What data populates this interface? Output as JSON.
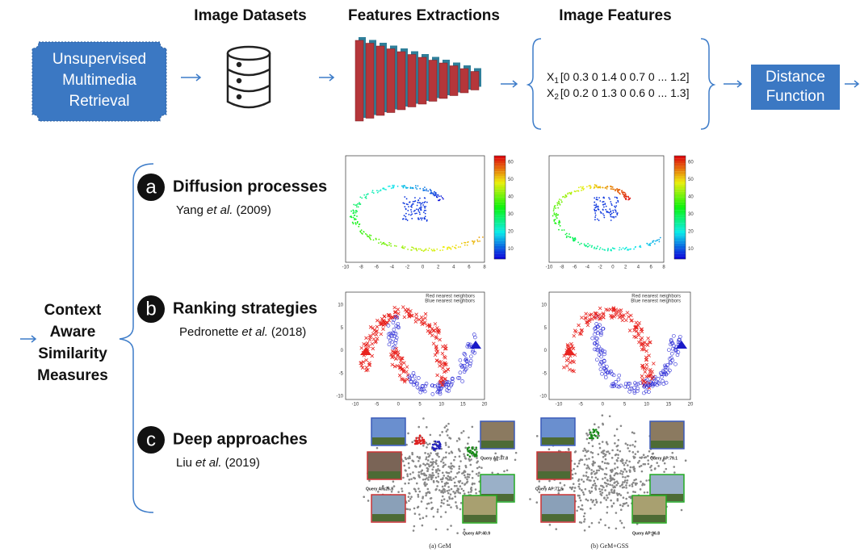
{
  "header": {
    "columns": [
      "Image Datasets",
      "Features Extractions",
      "Image Features"
    ]
  },
  "pipeline": {
    "start": [
      "Unsupervised",
      "Multimedia",
      "Retrieval"
    ],
    "features": [
      {
        "symbol": "X",
        "sub": "1",
        "vector": "[0 0.3 0 1.4 0 0.7 0 ... 1.2]"
      },
      {
        "symbol": "X",
        "sub": "2",
        "vector": "[0 0.2 0 1.3 0 0.6 0 ... 1.3]"
      }
    ],
    "distance": [
      "Distance",
      "Function"
    ]
  },
  "context": [
    "Context",
    "Aware",
    "Similarity",
    "Measures"
  ],
  "methods": [
    {
      "badge": "a",
      "title": "Diffusion processes",
      "author": "Yang",
      "etal": "et al.",
      "year": "(2009)"
    },
    {
      "badge": "b",
      "title": "Ranking strategies",
      "author": "Pedronette",
      "etal": "et al.",
      "year": "(2018)"
    },
    {
      "badge": "c",
      "title": "Deep approaches",
      "author": "Liu",
      "etal": "et al.",
      "year": "(2019)"
    }
  ],
  "plots": {
    "diffusion_xticks": [
      "-10",
      "-8",
      "-6",
      "-4",
      "-2",
      "0",
      "2",
      "4",
      "6",
      "8"
    ],
    "colorbar_ticks": [
      "60",
      "50",
      "40",
      "30",
      "20",
      "10"
    ],
    "ranking_xticks": [
      "-10",
      "-5",
      "0",
      "5",
      "10",
      "15",
      "20"
    ],
    "ranking_yticks": [
      "10",
      "5",
      "0",
      "-5",
      "-10"
    ],
    "legend": [
      "Red nearest neighbors",
      "Blue nearest neighbors"
    ],
    "deep": [
      {
        "caption": "(a) GeM",
        "queries": [
          "Query AP:26.8",
          "Query AP:37.8",
          "Query AP:40.9"
        ]
      },
      {
        "caption": "(b) GeM+GSS",
        "queries": [
          "Query AP:77.5",
          "Query AP:79.1",
          "Query AP:96.8"
        ]
      }
    ]
  }
}
